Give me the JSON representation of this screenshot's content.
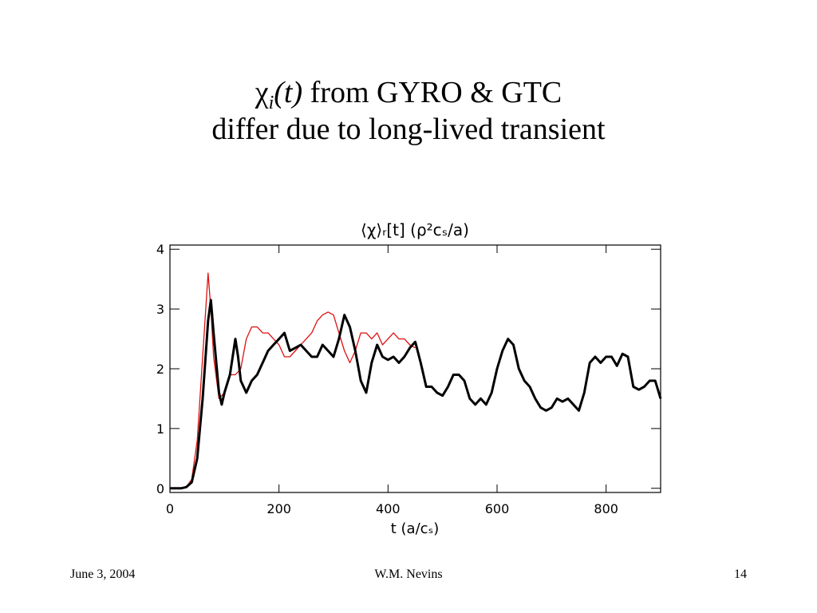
{
  "slide": {
    "title_line1": [
      "χ",
      "i",
      "(t)",
      " from GYRO & GTC"
    ],
    "title_line2": "differ due to long-lived transient",
    "footer_left": "June 3, 2004",
    "footer_center": "W.M. Nevins",
    "footer_right": "14"
  },
  "chart_data": {
    "type": "line",
    "title": "⟨χ⟩ᵣ[t]  (ρ²cₛ/a)",
    "x_label": "t (a/cₛ)",
    "xlim": [
      0,
      900
    ],
    "xticks": [
      0,
      200,
      400,
      600,
      800
    ],
    "ylim": [
      -0.07,
      4.07
    ],
    "yticks": [
      0,
      1,
      2,
      3,
      4
    ],
    "grid": false,
    "series": [
      {
        "color": "#000000",
        "x": [
          0,
          10,
          20,
          30,
          40,
          50,
          60,
          70,
          75,
          80,
          90,
          95,
          100,
          110,
          120,
          125,
          130,
          140,
          150,
          160,
          170,
          180,
          190,
          200,
          210,
          220,
          230,
          240,
          250,
          260,
          270,
          280,
          290,
          300,
          310,
          320,
          330,
          340,
          350,
          360,
          370,
          380,
          390,
          400,
          410,
          420,
          430,
          440,
          450,
          460,
          470,
          480,
          490,
          500,
          510,
          520,
          530,
          540,
          550,
          560,
          570,
          580,
          590,
          600,
          610,
          620,
          630,
          640,
          650,
          660,
          670,
          680,
          690,
          700,
          710,
          720,
          730,
          740,
          750,
          760,
          770,
          780,
          790,
          800,
          810,
          820,
          830,
          840,
          850,
          860,
          870,
          880,
          890,
          900
        ],
        "values": [
          0,
          0,
          0,
          0.02,
          0.1,
          0.5,
          1.5,
          2.8,
          3.15,
          2.6,
          1.6,
          1.4,
          1.6,
          1.9,
          2.5,
          2.2,
          1.8,
          1.6,
          1.8,
          1.9,
          2.1,
          2.3,
          2.4,
          2.5,
          2.6,
          2.3,
          2.35,
          2.4,
          2.3,
          2.2,
          2.2,
          2.4,
          2.3,
          2.2,
          2.5,
          2.9,
          2.7,
          2.3,
          1.8,
          1.6,
          2.1,
          2.4,
          2.2,
          2.15,
          2.2,
          2.1,
          2.2,
          2.35,
          2.45,
          2.1,
          1.7,
          1.7,
          1.6,
          1.55,
          1.7,
          1.9,
          1.9,
          1.8,
          1.5,
          1.4,
          1.5,
          1.4,
          1.6,
          2.0,
          2.3,
          2.5,
          2.4,
          2.0,
          1.8,
          1.7,
          1.5,
          1.35,
          1.3,
          1.35,
          1.5,
          1.45,
          1.5,
          1.4,
          1.3,
          1.6,
          2.1,
          2.2,
          2.1,
          2.2,
          2.2,
          2.05,
          2.25,
          2.2,
          1.7,
          1.65,
          1.7,
          1.8,
          1.8,
          1.5
        ]
      },
      {
        "color": "#dd1111",
        "x": [
          0,
          10,
          20,
          30,
          40,
          50,
          60,
          70,
          75,
          80,
          90,
          100,
          110,
          120,
          130,
          140,
          150,
          160,
          170,
          180,
          190,
          200,
          210,
          220,
          230,
          240,
          250,
          260,
          270,
          280,
          290,
          300,
          310,
          320,
          330,
          340,
          350,
          360,
          370,
          380,
          390,
          400,
          410,
          420,
          430,
          440,
          450
        ],
        "values": [
          0,
          0,
          0,
          0.02,
          0.15,
          0.8,
          2.2,
          3.6,
          3.0,
          2.2,
          1.5,
          1.6,
          1.9,
          1.9,
          2.0,
          2.5,
          2.7,
          2.7,
          2.6,
          2.6,
          2.5,
          2.4,
          2.2,
          2.2,
          2.3,
          2.4,
          2.5,
          2.6,
          2.8,
          2.9,
          2.95,
          2.9,
          2.6,
          2.3,
          2.1,
          2.3,
          2.6,
          2.6,
          2.5,
          2.6,
          2.4,
          2.5,
          2.6,
          2.5,
          2.5,
          2.4,
          2.35
        ]
      }
    ]
  }
}
